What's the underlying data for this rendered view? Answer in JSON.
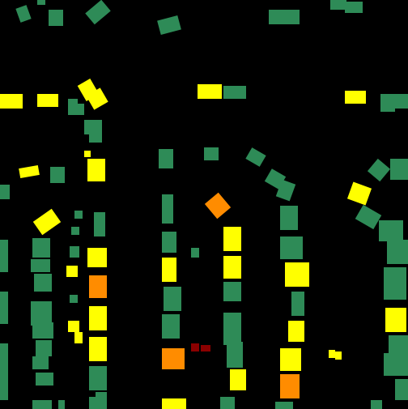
{
  "map": {
    "background": "#000000",
    "categories": [
      {
        "key": "green",
        "color": "#2e8b57"
      },
      {
        "key": "yellow",
        "color": "#ffff00"
      },
      {
        "key": "orange",
        "color": "#ff8c00"
      },
      {
        "key": "darkred",
        "color": "#8b0000"
      }
    ]
  }
}
